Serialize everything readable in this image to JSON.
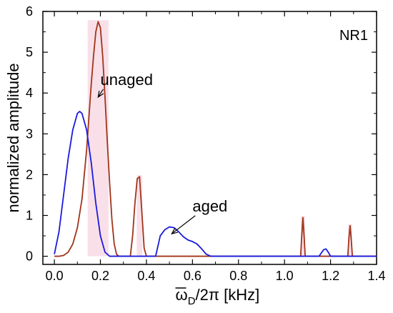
{
  "chart_data": {
    "type": "line",
    "panel_label": "NR1",
    "xlabel": {
      "overline_char": "ω",
      "subscript": "D",
      "rest": "/2π [kHz]"
    },
    "ylabel": "normalized amplitude",
    "xlim": [
      -0.05,
      1.4
    ],
    "ylim": [
      -0.2,
      6
    ],
    "xticks": [
      0.0,
      0.2,
      0.4,
      0.6,
      0.8,
      1.0,
      1.2,
      1.4
    ],
    "xtick_labels": [
      "0.0",
      "0.2",
      "0.4",
      "0.6",
      "0.8",
      "1.0",
      "1.2",
      "1.4"
    ],
    "yticks": [
      0,
      1,
      2,
      3,
      4,
      5,
      6
    ],
    "ytick_labels": [
      "0",
      "1",
      "2",
      "3",
      "4",
      "5",
      "6"
    ],
    "grid": false,
    "colors": {
      "unaged": "#a0341a",
      "aged": "#1a1adc",
      "highlight": "#f7d8e2"
    },
    "annotations": [
      {
        "text": "unaged",
        "text_at": [
          0.2,
          4.2
        ],
        "arrow_to": [
          0.19,
          3.9
        ]
      },
      {
        "text": "aged",
        "text_at": [
          0.6,
          1.1
        ],
        "arrow_to": [
          0.51,
          0.55
        ]
      }
    ],
    "series": [
      {
        "name": "unaged",
        "x": [
          0.0,
          0.02,
          0.04,
          0.06,
          0.08,
          0.1,
          0.12,
          0.14,
          0.15,
          0.16,
          0.17,
          0.18,
          0.19,
          0.2,
          0.21,
          0.22,
          0.23,
          0.24,
          0.25,
          0.26,
          0.27,
          0.28,
          0.29,
          0.3,
          0.33,
          0.34,
          0.35,
          0.36,
          0.37,
          0.38,
          0.39,
          0.4,
          0.5,
          1.0,
          1.07,
          1.075,
          1.08,
          1.085,
          1.09,
          1.095,
          1.2,
          1.275,
          1.28,
          1.285,
          1.29,
          1.295,
          1.4
        ],
        "y": [
          0.0,
          0.0,
          0.02,
          0.1,
          0.3,
          0.7,
          1.4,
          2.6,
          3.4,
          4.2,
          4.9,
          5.5,
          5.75,
          5.6,
          4.9,
          3.9,
          2.8,
          1.8,
          0.9,
          0.3,
          0.05,
          0.0,
          0.0,
          0.0,
          0.0,
          0.5,
          1.3,
          1.9,
          1.95,
          1.1,
          0.2,
          0.0,
          0.0,
          0.0,
          0.0,
          0.5,
          0.95,
          0.5,
          0.0,
          0.0,
          0.0,
          0.0,
          0.45,
          0.75,
          0.4,
          0.0,
          0.0
        ]
      },
      {
        "name": "aged",
        "x": [
          0.0,
          0.02,
          0.04,
          0.06,
          0.08,
          0.1,
          0.11,
          0.12,
          0.14,
          0.16,
          0.18,
          0.2,
          0.22,
          0.24,
          0.3,
          0.44,
          0.45,
          0.46,
          0.48,
          0.5,
          0.52,
          0.54,
          0.56,
          0.58,
          0.6,
          0.62,
          0.64,
          0.66,
          0.68,
          1.0,
          1.15,
          1.16,
          1.17,
          1.18,
          1.19,
          1.2,
          1.4
        ],
        "y": [
          0.05,
          0.6,
          1.5,
          2.4,
          3.1,
          3.5,
          3.55,
          3.5,
          3.1,
          2.3,
          1.3,
          0.5,
          0.1,
          0.0,
          0.0,
          0.0,
          0.25,
          0.5,
          0.65,
          0.72,
          0.7,
          0.6,
          0.48,
          0.4,
          0.36,
          0.3,
          0.18,
          0.05,
          0.0,
          0.0,
          0.0,
          0.08,
          0.16,
          0.18,
          0.1,
          0.0,
          0.0
        ]
      }
    ]
  }
}
